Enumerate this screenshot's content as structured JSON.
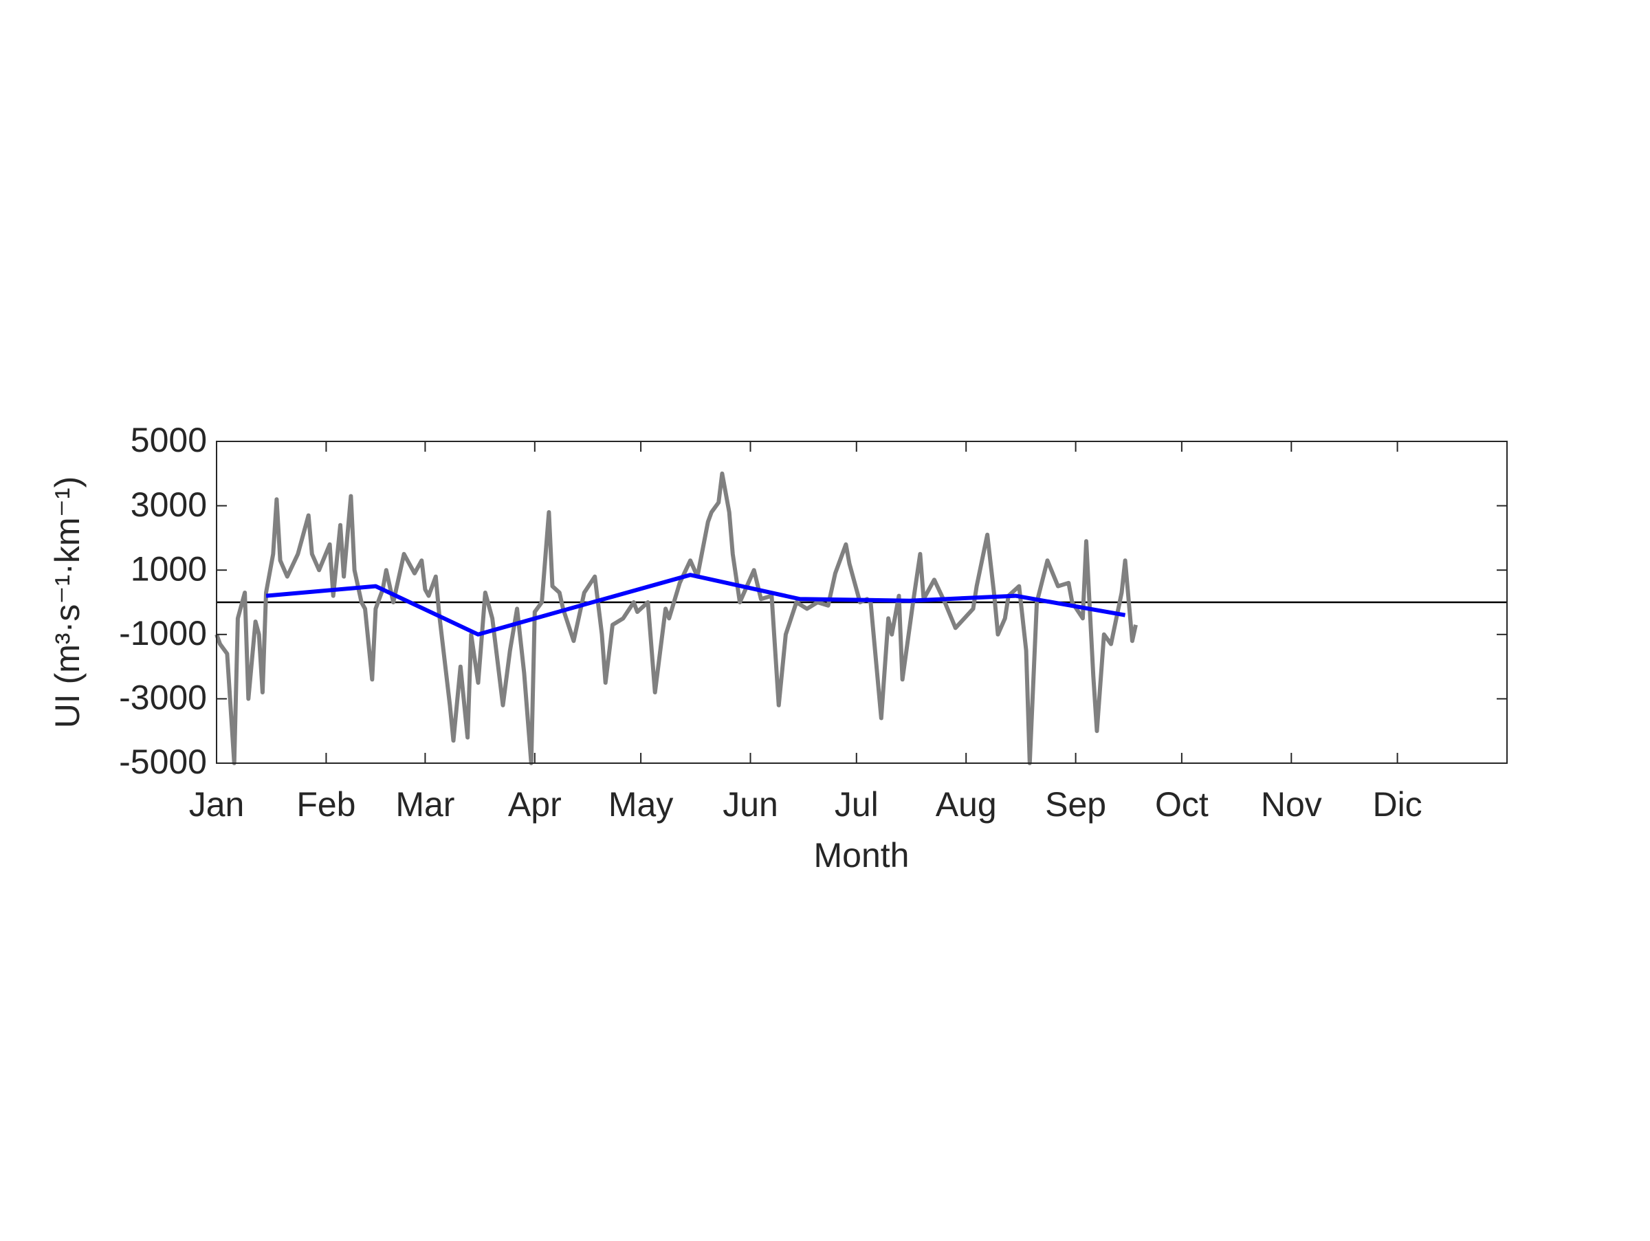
{
  "chart_data": {
    "type": "line",
    "x_label": "Month",
    "y_label": "UI (m³·s⁻¹·km⁻¹)",
    "xlim": [
      1,
      366
    ],
    "xticks": [
      {
        "value": 1,
        "label": "Jan"
      },
      {
        "value": 32,
        "label": "Feb"
      },
      {
        "value": 60,
        "label": "Mar"
      },
      {
        "value": 91,
        "label": "Apr"
      },
      {
        "value": 121,
        "label": "May"
      },
      {
        "value": 152,
        "label": "Jun"
      },
      {
        "value": 182,
        "label": "Jul"
      },
      {
        "value": 213,
        "label": "Aug"
      },
      {
        "value": 244,
        "label": "Sep"
      },
      {
        "value": 274,
        "label": "Oct"
      },
      {
        "value": 305,
        "label": "Nov"
      },
      {
        "value": 335,
        "label": "Dic"
      }
    ],
    "ylim": [
      -5000,
      5000
    ],
    "yticks": [
      -5000,
      -3000,
      -1000,
      1000,
      3000,
      5000
    ],
    "reference_line": 0,
    "series": [
      {
        "color": "#808080",
        "x": [
          1,
          2,
          4,
          6,
          7,
          9,
          10,
          12,
          13,
          14,
          15,
          17,
          18,
          19,
          21,
          24,
          27,
          28,
          30,
          33,
          34,
          36,
          37,
          39,
          40,
          42,
          43,
          45,
          46,
          48,
          49,
          51,
          54,
          57,
          59,
          60,
          61,
          63,
          64,
          67,
          68,
          70,
          72,
          73,
          75,
          77,
          79,
          82,
          84,
          86,
          88,
          90,
          91,
          93,
          95,
          96,
          98,
          99,
          102,
          105,
          108,
          110,
          111,
          113,
          116,
          119,
          120,
          123,
          125,
          128,
          129,
          132,
          135,
          137,
          140,
          141,
          143,
          144,
          146,
          147,
          149,
          153,
          155,
          158,
          160,
          162,
          165,
          168,
          171,
          174,
          176,
          179,
          180,
          183,
          185,
          186,
          189,
          191,
          192,
          194,
          195,
          198,
          200,
          201,
          204,
          207,
          210,
          215,
          216,
          219,
          221,
          222,
          224,
          225,
          228,
          230,
          231,
          233,
          236,
          239,
          242,
          243,
          246,
          247,
          249,
          250,
          252,
          254,
          257,
          258,
          260,
          261
        ],
        "values": [
          -1000,
          -1300,
          -1600,
          -5000,
          -500,
          300,
          -3000,
          -600,
          -1000,
          -2800,
          300,
          1500,
          3200,
          1300,
          800,
          1500,
          2700,
          1500,
          1000,
          1800,
          200,
          2400,
          800,
          3300,
          1000,
          0,
          -200,
          -2400,
          -200,
          400,
          1000,
          0,
          1500,
          900,
          1300,
          400,
          200,
          800,
          -400,
          -3200,
          -4300,
          -2000,
          -4200,
          -1000,
          -2500,
          300,
          -500,
          -3200,
          -1500,
          -200,
          -2200,
          -5000,
          -300,
          0,
          2800,
          500,
          300,
          -200,
          -1200,
          300,
          800,
          -1000,
          -2500,
          -700,
          -500,
          0,
          -300,
          0,
          -2800,
          -200,
          -500,
          600,
          1300,
          800,
          2500,
          2800,
          3100,
          4000,
          2800,
          1500,
          0,
          1000,
          100,
          200,
          -3200,
          -1000,
          0,
          -200,
          0,
          -100,
          900,
          1800,
          1200,
          0,
          100,
          0,
          -3600,
          -500,
          -1000,
          200,
          -2400,
          0,
          1500,
          100,
          700,
          0,
          -800,
          -200,
          500,
          2100,
          200,
          -1000,
          -500,
          200,
          500,
          -1500,
          -5000,
          0,
          1300,
          500,
          600,
          0,
          -500,
          1900,
          -2300,
          -4000,
          -1000,
          -1300,
          300,
          1300,
          -1200,
          -700
        ]
      },
      {
        "color": "#0000ff",
        "x": [
          15,
          46,
          75,
          104,
          135,
          166,
          197,
          227,
          258
        ],
        "values": [
          200,
          500,
          -1000,
          -100,
          850,
          100,
          50,
          200,
          -400
        ]
      }
    ]
  }
}
